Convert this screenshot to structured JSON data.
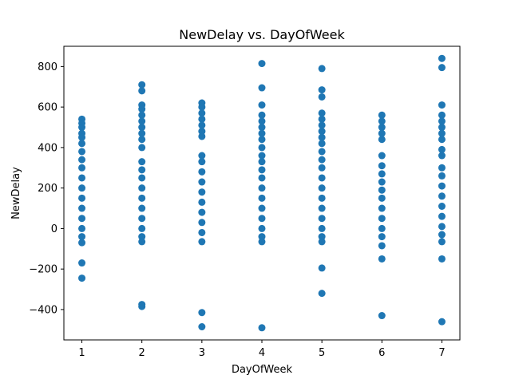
{
  "chart_data": {
    "type": "scatter",
    "title": "NewDelay vs. DayOfWeek",
    "xlabel": "DayOfWeek",
    "ylabel": "NewDelay",
    "xlim": [
      0.7,
      7.3
    ],
    "ylim": [
      -550,
      900
    ],
    "xticks": [
      1,
      2,
      3,
      4,
      5,
      6,
      7
    ],
    "yticks": [
      -400,
      -200,
      0,
      200,
      400,
      600,
      800
    ],
    "ytick_labels": [
      "−400",
      "−200",
      "0",
      "200",
      "400",
      "600",
      "800"
    ],
    "grid": false,
    "marker_color": "#1f77b4",
    "series": [
      {
        "points": [
          {
            "x": 1,
            "y": -245
          },
          {
            "x": 1,
            "y": -170
          },
          {
            "x": 1,
            "y": 540
          },
          {
            "x": 1,
            "y": 520
          },
          {
            "x": 1,
            "y": 500
          },
          {
            "x": 1,
            "y": 470
          },
          {
            "x": 1,
            "y": 450
          },
          {
            "x": 1,
            "y": 420
          },
          {
            "x": 1,
            "y": 380
          },
          {
            "x": 1,
            "y": 340
          },
          {
            "x": 1,
            "y": 300
          },
          {
            "x": 1,
            "y": 250
          },
          {
            "x": 1,
            "y": 200
          },
          {
            "x": 1,
            "y": 150
          },
          {
            "x": 1,
            "y": 100
          },
          {
            "x": 1,
            "y": 50
          },
          {
            "x": 1,
            "y": 0
          },
          {
            "x": 1,
            "y": -40
          },
          {
            "x": 1,
            "y": -70
          },
          {
            "x": 2,
            "y": -385
          },
          {
            "x": 2,
            "y": -375
          },
          {
            "x": 2,
            "y": 710
          },
          {
            "x": 2,
            "y": 680
          },
          {
            "x": 2,
            "y": 610
          },
          {
            "x": 2,
            "y": 590
          },
          {
            "x": 2,
            "y": 560
          },
          {
            "x": 2,
            "y": 530
          },
          {
            "x": 2,
            "y": 500
          },
          {
            "x": 2,
            "y": 470
          },
          {
            "x": 2,
            "y": 440
          },
          {
            "x": 2,
            "y": 400
          },
          {
            "x": 2,
            "y": 330
          },
          {
            "x": 2,
            "y": 290
          },
          {
            "x": 2,
            "y": 250
          },
          {
            "x": 2,
            "y": 200
          },
          {
            "x": 2,
            "y": 150
          },
          {
            "x": 2,
            "y": 100
          },
          {
            "x": 2,
            "y": 50
          },
          {
            "x": 2,
            "y": 0
          },
          {
            "x": 2,
            "y": -40
          },
          {
            "x": 2,
            "y": -65
          },
          {
            "x": 3,
            "y": -485
          },
          {
            "x": 3,
            "y": -415
          },
          {
            "x": 3,
            "y": 620
          },
          {
            "x": 3,
            "y": 600
          },
          {
            "x": 3,
            "y": 570
          },
          {
            "x": 3,
            "y": 540
          },
          {
            "x": 3,
            "y": 510
          },
          {
            "x": 3,
            "y": 480
          },
          {
            "x": 3,
            "y": 455
          },
          {
            "x": 3,
            "y": 360
          },
          {
            "x": 3,
            "y": 330
          },
          {
            "x": 3,
            "y": 280
          },
          {
            "x": 3,
            "y": 230
          },
          {
            "x": 3,
            "y": 180
          },
          {
            "x": 3,
            "y": 130
          },
          {
            "x": 3,
            "y": 80
          },
          {
            "x": 3,
            "y": 30
          },
          {
            "x": 3,
            "y": -20
          },
          {
            "x": 3,
            "y": -65
          },
          {
            "x": 4,
            "y": -490
          },
          {
            "x": 4,
            "y": 815
          },
          {
            "x": 4,
            "y": 695
          },
          {
            "x": 4,
            "y": 610
          },
          {
            "x": 4,
            "y": 560
          },
          {
            "x": 4,
            "y": 530
          },
          {
            "x": 4,
            "y": 500
          },
          {
            "x": 4,
            "y": 470
          },
          {
            "x": 4,
            "y": 440
          },
          {
            "x": 4,
            "y": 400
          },
          {
            "x": 4,
            "y": 360
          },
          {
            "x": 4,
            "y": 330
          },
          {
            "x": 4,
            "y": 290
          },
          {
            "x": 4,
            "y": 250
          },
          {
            "x": 4,
            "y": 200
          },
          {
            "x": 4,
            "y": 150
          },
          {
            "x": 4,
            "y": 100
          },
          {
            "x": 4,
            "y": 50
          },
          {
            "x": 4,
            "y": 0
          },
          {
            "x": 4,
            "y": -40
          },
          {
            "x": 4,
            "y": -65
          },
          {
            "x": 5,
            "y": -320
          },
          {
            "x": 5,
            "y": -195
          },
          {
            "x": 5,
            "y": 790
          },
          {
            "x": 5,
            "y": 685
          },
          {
            "x": 5,
            "y": 650
          },
          {
            "x": 5,
            "y": 570
          },
          {
            "x": 5,
            "y": 540
          },
          {
            "x": 5,
            "y": 510
          },
          {
            "x": 5,
            "y": 480
          },
          {
            "x": 5,
            "y": 450
          },
          {
            "x": 5,
            "y": 420
          },
          {
            "x": 5,
            "y": 380
          },
          {
            "x": 5,
            "y": 340
          },
          {
            "x": 5,
            "y": 300
          },
          {
            "x": 5,
            "y": 250
          },
          {
            "x": 5,
            "y": 200
          },
          {
            "x": 5,
            "y": 150
          },
          {
            "x": 5,
            "y": 100
          },
          {
            "x": 5,
            "y": 50
          },
          {
            "x": 5,
            "y": 0
          },
          {
            "x": 5,
            "y": -40
          },
          {
            "x": 5,
            "y": -65
          },
          {
            "x": 6,
            "y": -430
          },
          {
            "x": 6,
            "y": -150
          },
          {
            "x": 6,
            "y": 560
          },
          {
            "x": 6,
            "y": 530
          },
          {
            "x": 6,
            "y": 500
          },
          {
            "x": 6,
            "y": 470
          },
          {
            "x": 6,
            "y": 440
          },
          {
            "x": 6,
            "y": 360
          },
          {
            "x": 6,
            "y": 310
          },
          {
            "x": 6,
            "y": 270
          },
          {
            "x": 6,
            "y": 230
          },
          {
            "x": 6,
            "y": 190
          },
          {
            "x": 6,
            "y": 150
          },
          {
            "x": 6,
            "y": 100
          },
          {
            "x": 6,
            "y": 50
          },
          {
            "x": 6,
            "y": 0
          },
          {
            "x": 6,
            "y": -40
          },
          {
            "x": 6,
            "y": -85
          },
          {
            "x": 7,
            "y": -460
          },
          {
            "x": 7,
            "y": -150
          },
          {
            "x": 7,
            "y": 840
          },
          {
            "x": 7,
            "y": 795
          },
          {
            "x": 7,
            "y": 610
          },
          {
            "x": 7,
            "y": 560
          },
          {
            "x": 7,
            "y": 530
          },
          {
            "x": 7,
            "y": 500
          },
          {
            "x": 7,
            "y": 470
          },
          {
            "x": 7,
            "y": 440
          },
          {
            "x": 7,
            "y": 390
          },
          {
            "x": 7,
            "y": 360
          },
          {
            "x": 7,
            "y": 300
          },
          {
            "x": 7,
            "y": 260
          },
          {
            "x": 7,
            "y": 210
          },
          {
            "x": 7,
            "y": 160
          },
          {
            "x": 7,
            "y": 110
          },
          {
            "x": 7,
            "y": 60
          },
          {
            "x": 7,
            "y": 10
          },
          {
            "x": 7,
            "y": -30
          },
          {
            "x": 7,
            "y": -65
          }
        ]
      }
    ]
  }
}
